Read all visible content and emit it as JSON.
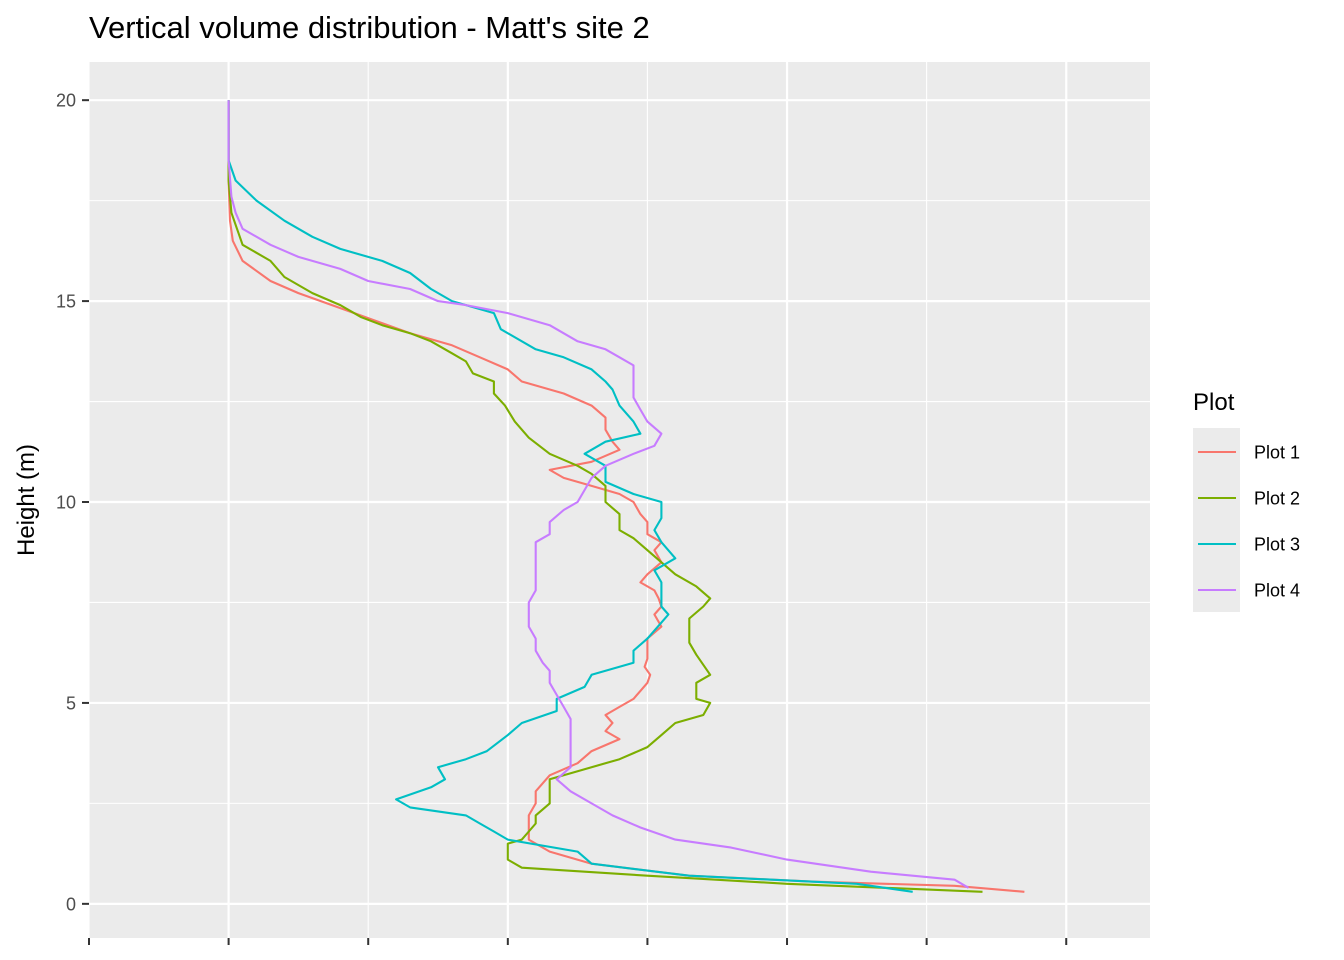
{
  "chart_data": {
    "type": "line",
    "title": "Vertical volume distribution - Matt's site 2",
    "xlabel": "",
    "ylabel": "Height (m)",
    "ylim": [
      -0.85,
      20.95
    ],
    "xlim": [
      -1.0,
      6.6
    ],
    "y_ticks": [
      0,
      5,
      10,
      15,
      20
    ],
    "y_tick_labels": [
      "0",
      "5",
      "10",
      "15",
      "20"
    ],
    "x_grid_major": [
      0,
      2,
      4,
      6
    ],
    "x_grid_minor": [
      -1,
      1,
      3,
      5
    ],
    "x_tick_labels": [],
    "grid": true,
    "background": "#ebebeb",
    "legend": {
      "title": "Plot",
      "position": "right"
    },
    "series": [
      {
        "name": "Plot 1",
        "color": "#F8766D",
        "points": [
          [
            0,
            20
          ],
          [
            0,
            18
          ],
          [
            0.01,
            17
          ],
          [
            0.03,
            16.5
          ],
          [
            0.1,
            16
          ],
          [
            0.3,
            15.5
          ],
          [
            0.5,
            15.2
          ],
          [
            0.9,
            14.7
          ],
          [
            1.3,
            14.2
          ],
          [
            1.6,
            13.9
          ],
          [
            1.8,
            13.6
          ],
          [
            2.0,
            13.3
          ],
          [
            2.1,
            13.0
          ],
          [
            2.4,
            12.7
          ],
          [
            2.6,
            12.4
          ],
          [
            2.7,
            12.1
          ],
          [
            2.7,
            11.8
          ],
          [
            2.75,
            11.5
          ],
          [
            2.8,
            11.3
          ],
          [
            2.6,
            11.0
          ],
          [
            2.3,
            10.8
          ],
          [
            2.4,
            10.6
          ],
          [
            2.6,
            10.4
          ],
          [
            2.8,
            10.2
          ],
          [
            2.9,
            10.0
          ],
          [
            2.95,
            9.7
          ],
          [
            3.0,
            9.5
          ],
          [
            3.0,
            9.2
          ],
          [
            3.1,
            9.0
          ],
          [
            3.05,
            8.8
          ],
          [
            3.1,
            8.5
          ],
          [
            3.0,
            8.2
          ],
          [
            2.95,
            8.0
          ],
          [
            3.05,
            7.8
          ],
          [
            3.08,
            7.6
          ],
          [
            3.1,
            7.4
          ],
          [
            3.05,
            7.2
          ],
          [
            3.1,
            6.9
          ],
          [
            3.0,
            6.6
          ],
          [
            3.0,
            6.3
          ],
          [
            3.0,
            6.1
          ],
          [
            2.98,
            5.9
          ],
          [
            3.02,
            5.7
          ],
          [
            3.0,
            5.5
          ],
          [
            2.95,
            5.3
          ],
          [
            2.9,
            5.1
          ],
          [
            2.8,
            4.9
          ],
          [
            2.7,
            4.7
          ],
          [
            2.75,
            4.5
          ],
          [
            2.7,
            4.3
          ],
          [
            2.8,
            4.1
          ],
          [
            2.6,
            3.8
          ],
          [
            2.5,
            3.5
          ],
          [
            2.3,
            3.2
          ],
          [
            2.2,
            2.8
          ],
          [
            2.2,
            2.5
          ],
          [
            2.15,
            2.2
          ],
          [
            2.15,
            1.9
          ],
          [
            2.15,
            1.6
          ],
          [
            2.3,
            1.3
          ],
          [
            2.6,
            1.0
          ],
          [
            3.3,
            0.7
          ],
          [
            4.2,
            0.55
          ],
          [
            5.2,
            0.45
          ],
          [
            5.7,
            0.3
          ]
        ]
      },
      {
        "name": "Plot 2",
        "color": "#7CAE00",
        "points": [
          [
            0,
            20
          ],
          [
            0,
            18
          ],
          [
            0.02,
            17.2
          ],
          [
            0.06,
            16.8
          ],
          [
            0.1,
            16.4
          ],
          [
            0.3,
            16
          ],
          [
            0.4,
            15.6
          ],
          [
            0.6,
            15.2
          ],
          [
            0.8,
            14.9
          ],
          [
            0.95,
            14.6
          ],
          [
            1.1,
            14.4
          ],
          [
            1.3,
            14.2
          ],
          [
            1.45,
            14.0
          ],
          [
            1.6,
            13.7
          ],
          [
            1.7,
            13.5
          ],
          [
            1.75,
            13.2
          ],
          [
            1.9,
            13.0
          ],
          [
            1.9,
            12.7
          ],
          [
            1.98,
            12.4
          ],
          [
            2.05,
            12.0
          ],
          [
            2.15,
            11.6
          ],
          [
            2.3,
            11.2
          ],
          [
            2.5,
            10.9
          ],
          [
            2.6,
            10.7
          ],
          [
            2.7,
            10.4
          ],
          [
            2.7,
            10.0
          ],
          [
            2.8,
            9.7
          ],
          [
            2.8,
            9.3
          ],
          [
            2.9,
            9.1
          ],
          [
            3.0,
            8.8
          ],
          [
            3.1,
            8.5
          ],
          [
            3.2,
            8.2
          ],
          [
            3.35,
            7.9
          ],
          [
            3.45,
            7.6
          ],
          [
            3.4,
            7.4
          ],
          [
            3.3,
            7.1
          ],
          [
            3.3,
            6.8
          ],
          [
            3.3,
            6.5
          ],
          [
            3.35,
            6.2
          ],
          [
            3.45,
            5.7
          ],
          [
            3.35,
            5.5
          ],
          [
            3.35,
            5.1
          ],
          [
            3.45,
            5.0
          ],
          [
            3.4,
            4.7
          ],
          [
            3.2,
            4.5
          ],
          [
            3.1,
            4.2
          ],
          [
            3.0,
            3.9
          ],
          [
            2.8,
            3.6
          ],
          [
            2.5,
            3.3
          ],
          [
            2.3,
            3.1
          ],
          [
            2.3,
            2.8
          ],
          [
            2.3,
            2.5
          ],
          [
            2.2,
            2.2
          ],
          [
            2.2,
            2.0
          ],
          [
            2.15,
            1.8
          ],
          [
            2.1,
            1.6
          ],
          [
            2.0,
            1.5
          ],
          [
            2.0,
            1.1
          ],
          [
            2.1,
            0.9
          ],
          [
            3.0,
            0.7
          ],
          [
            4.0,
            0.5
          ],
          [
            5.4,
            0.3
          ]
        ]
      },
      {
        "name": "Plot 3",
        "color": "#00BFC4",
        "points": [
          [
            0,
            20
          ],
          [
            0,
            18.5
          ],
          [
            0.05,
            18.0
          ],
          [
            0.2,
            17.5
          ],
          [
            0.4,
            17.0
          ],
          [
            0.6,
            16.6
          ],
          [
            0.8,
            16.3
          ],
          [
            1.1,
            16.0
          ],
          [
            1.3,
            15.7
          ],
          [
            1.45,
            15.3
          ],
          [
            1.6,
            15.0
          ],
          [
            1.9,
            14.7
          ],
          [
            1.95,
            14.3
          ],
          [
            2.2,
            13.8
          ],
          [
            2.4,
            13.6
          ],
          [
            2.6,
            13.3
          ],
          [
            2.7,
            13.0
          ],
          [
            2.75,
            12.8
          ],
          [
            2.8,
            12.4
          ],
          [
            2.9,
            12.0
          ],
          [
            2.95,
            11.7
          ],
          [
            2.7,
            11.5
          ],
          [
            2.55,
            11.2
          ],
          [
            2.7,
            10.9
          ],
          [
            2.7,
            10.5
          ],
          [
            2.9,
            10.2
          ],
          [
            3.1,
            10.0
          ],
          [
            3.1,
            9.6
          ],
          [
            3.05,
            9.3
          ],
          [
            3.1,
            9.0
          ],
          [
            3.2,
            8.6
          ],
          [
            3.05,
            8.3
          ],
          [
            3.1,
            8.0
          ],
          [
            3.1,
            7.7
          ],
          [
            3.1,
            7.4
          ],
          [
            3.15,
            7.2
          ],
          [
            3.1,
            7.0
          ],
          [
            3.0,
            6.6
          ],
          [
            2.9,
            6.3
          ],
          [
            2.9,
            6.0
          ],
          [
            2.6,
            5.7
          ],
          [
            2.55,
            5.4
          ],
          [
            2.35,
            5.1
          ],
          [
            2.35,
            4.8
          ],
          [
            2.1,
            4.5
          ],
          [
            2.0,
            4.2
          ],
          [
            1.85,
            3.8
          ],
          [
            1.7,
            3.6
          ],
          [
            1.5,
            3.4
          ],
          [
            1.55,
            3.1
          ],
          [
            1.45,
            2.9
          ],
          [
            1.2,
            2.6
          ],
          [
            1.3,
            2.4
          ],
          [
            1.7,
            2.2
          ],
          [
            1.8,
            2.0
          ],
          [
            1.9,
            1.8
          ],
          [
            2.0,
            1.6
          ],
          [
            2.5,
            1.3
          ],
          [
            2.6,
            1.0
          ],
          [
            3.3,
            0.7
          ],
          [
            4.5,
            0.5
          ],
          [
            4.9,
            0.3
          ]
        ]
      },
      {
        "name": "Plot 4",
        "color": "#C77CFF",
        "points": [
          [
            0,
            20
          ],
          [
            0,
            18.5
          ],
          [
            0.02,
            17.6
          ],
          [
            0.05,
            17.2
          ],
          [
            0.1,
            16.8
          ],
          [
            0.3,
            16.4
          ],
          [
            0.5,
            16.1
          ],
          [
            0.8,
            15.8
          ],
          [
            1.0,
            15.5
          ],
          [
            1.3,
            15.3
          ],
          [
            1.5,
            15.0
          ],
          [
            1.7,
            14.9
          ],
          [
            2.0,
            14.7
          ],
          [
            2.3,
            14.4
          ],
          [
            2.5,
            14.0
          ],
          [
            2.7,
            13.8
          ],
          [
            2.8,
            13.6
          ],
          [
            2.9,
            13.4
          ],
          [
            2.9,
            13.0
          ],
          [
            2.9,
            12.6
          ],
          [
            2.95,
            12.3
          ],
          [
            3.0,
            12.0
          ],
          [
            3.1,
            11.7
          ],
          [
            3.05,
            11.4
          ],
          [
            2.9,
            11.2
          ],
          [
            2.7,
            10.9
          ],
          [
            2.6,
            10.6
          ],
          [
            2.55,
            10.3
          ],
          [
            2.5,
            10.0
          ],
          [
            2.4,
            9.8
          ],
          [
            2.3,
            9.5
          ],
          [
            2.3,
            9.2
          ],
          [
            2.2,
            9.0
          ],
          [
            2.2,
            8.7
          ],
          [
            2.2,
            8.4
          ],
          [
            2.2,
            8.1
          ],
          [
            2.2,
            7.8
          ],
          [
            2.15,
            7.5
          ],
          [
            2.15,
            7.2
          ],
          [
            2.15,
            6.9
          ],
          [
            2.2,
            6.6
          ],
          [
            2.2,
            6.3
          ],
          [
            2.25,
            6.0
          ],
          [
            2.3,
            5.8
          ],
          [
            2.3,
            5.5
          ],
          [
            2.35,
            5.2
          ],
          [
            2.4,
            4.9
          ],
          [
            2.45,
            4.6
          ],
          [
            2.45,
            4.3
          ],
          [
            2.45,
            4.0
          ],
          [
            2.45,
            3.7
          ],
          [
            2.45,
            3.4
          ],
          [
            2.35,
            3.1
          ],
          [
            2.45,
            2.8
          ],
          [
            2.6,
            2.5
          ],
          [
            2.75,
            2.2
          ],
          [
            2.95,
            1.9
          ],
          [
            3.2,
            1.6
          ],
          [
            3.6,
            1.4
          ],
          [
            4.0,
            1.1
          ],
          [
            4.6,
            0.8
          ],
          [
            5.2,
            0.6
          ],
          [
            5.3,
            0.4
          ]
        ]
      }
    ]
  }
}
